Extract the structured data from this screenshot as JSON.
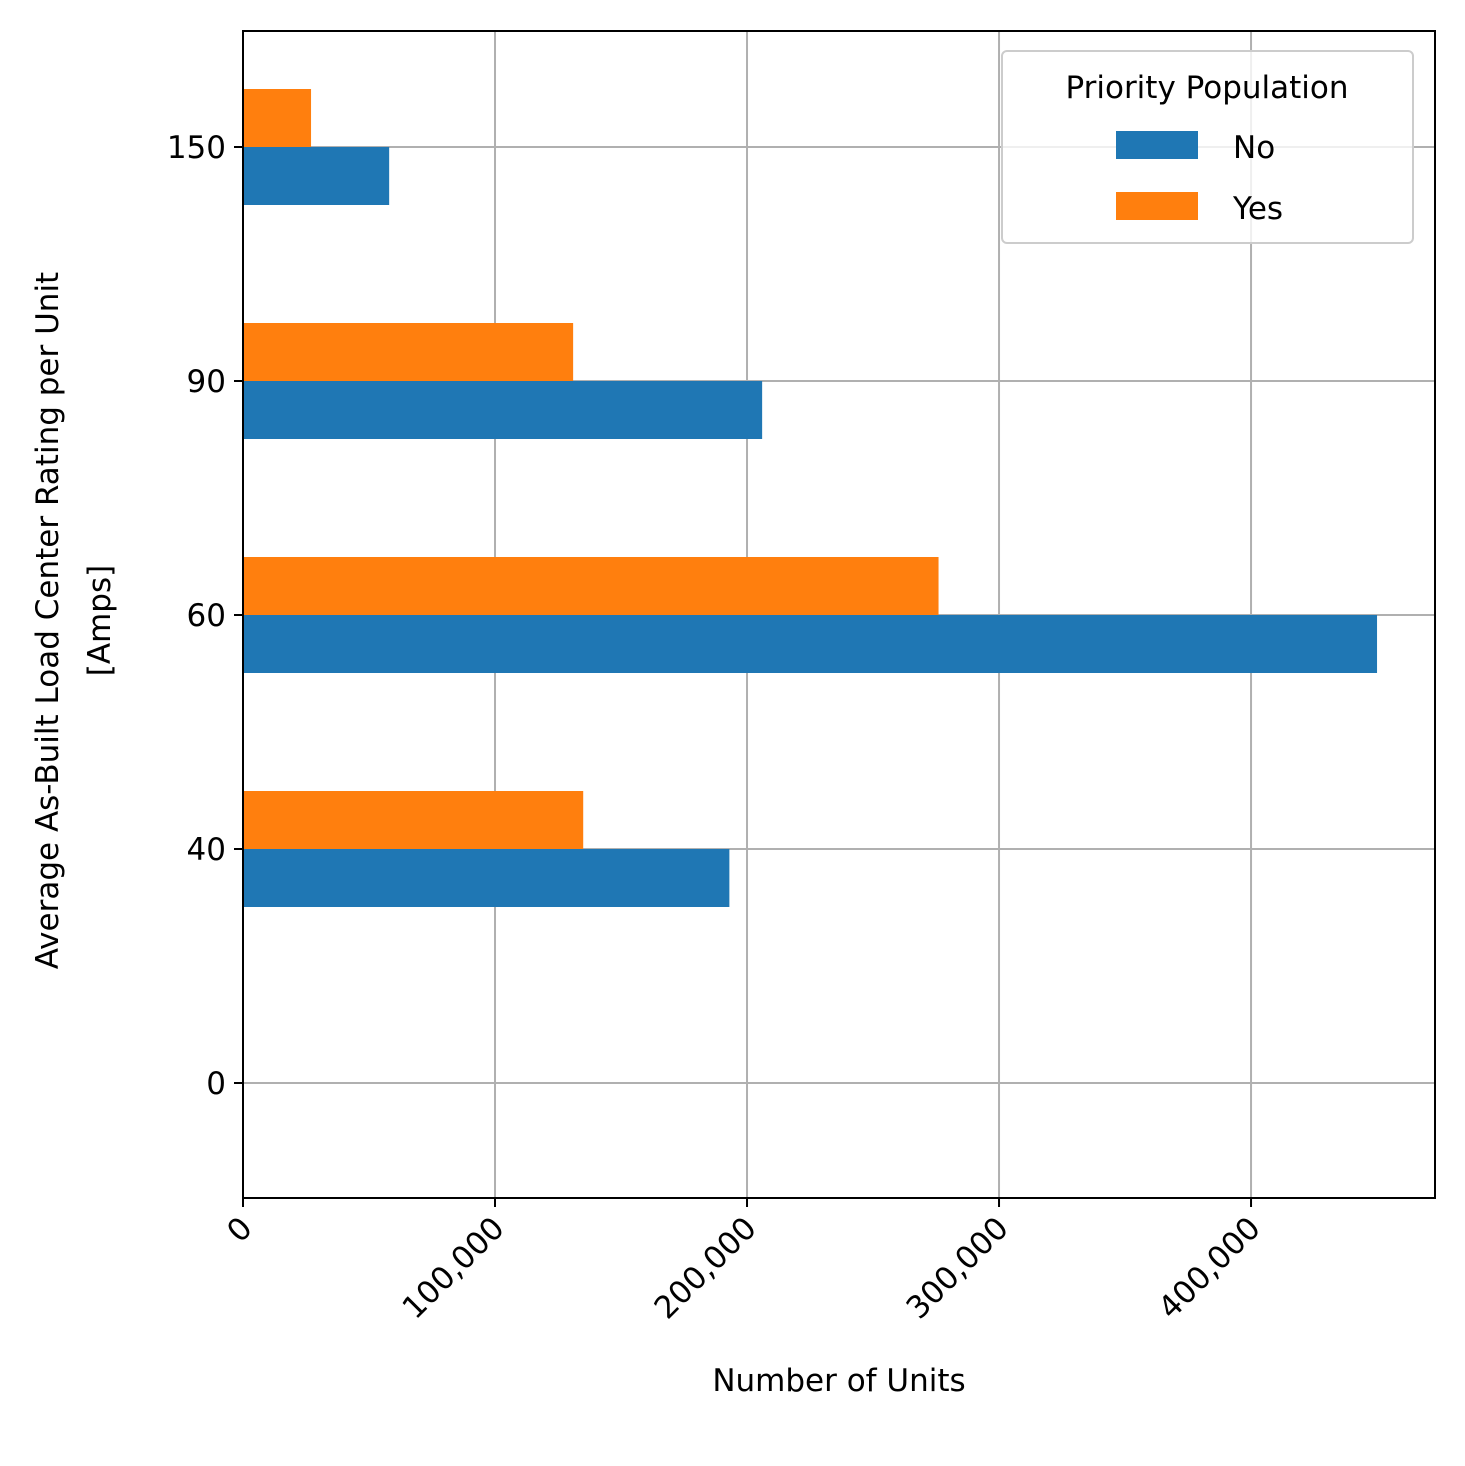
{
  "chart_data": {
    "type": "bar",
    "orientation": "horizontal",
    "categories": [
      "0",
      "40",
      "60",
      "90",
      "150"
    ],
    "series": [
      {
        "name": "No",
        "values": [
          0,
          193000,
          450000,
          206000,
          58000
        ],
        "color": "#1f77b4"
      },
      {
        "name": "Yes",
        "values": [
          0,
          135000,
          276000,
          131000,
          27000
        ],
        "color": "#ff7f0e"
      }
    ],
    "xlabel": "Number of Units",
    "ylabel_lines": [
      "Average As-Built Load Center Rating per Unit",
      "[Amps]"
    ],
    "xlim": [
      0,
      473000
    ],
    "xticks": [
      0,
      100000,
      200000,
      300000,
      400000
    ],
    "xtick_labels": [
      "0",
      "100,000",
      "200,000",
      "300,000",
      "400,000"
    ],
    "grid": true,
    "legend": {
      "title": "Priority Population",
      "placement": "upper right"
    }
  }
}
